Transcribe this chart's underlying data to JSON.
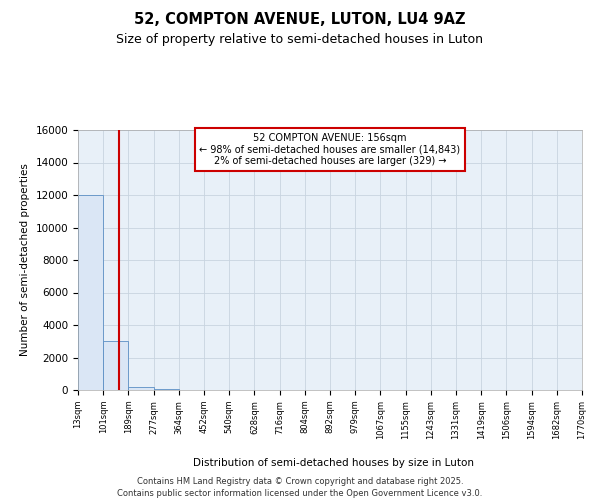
{
  "title": "52, COMPTON AVENUE, LUTON, LU4 9AZ",
  "subtitle": "Size of property relative to semi-detached houses in Luton",
  "xlabel": "Distribution of semi-detached houses by size in Luton",
  "ylabel": "Number of semi-detached properties",
  "property_size": 156,
  "property_line_color": "#cc0000",
  "bar_color": "#dae6f5",
  "bar_edge_color": "#5b8ec4",
  "annotation_text": "52 COMPTON AVENUE: 156sqm\n← 98% of semi-detached houses are smaller (14,843)\n2% of semi-detached houses are larger (329) →",
  "annotation_box_color": "#cc0000",
  "footer_line1": "Contains HM Land Registry data © Crown copyright and database right 2025.",
  "footer_line2": "Contains public sector information licensed under the Open Government Licence v3.0.",
  "bin_edges": [
    13,
    101,
    189,
    277,
    364,
    452,
    540,
    628,
    716,
    804,
    892,
    979,
    1067,
    1155,
    1243,
    1331,
    1419,
    1506,
    1594,
    1682,
    1770
  ],
  "bin_counts": [
    12000,
    3000,
    200,
    50,
    15,
    8,
    5,
    4,
    3,
    2,
    2,
    1,
    1,
    1,
    1,
    1,
    1,
    1,
    1,
    1
  ],
  "ylim": [
    0,
    16000
  ],
  "yticks": [
    0,
    2000,
    4000,
    6000,
    8000,
    10000,
    12000,
    14000,
    16000
  ],
  "background_color": "#ffffff",
  "plot_background": "#e8f0f8",
  "grid_color": "#c8d4e0"
}
